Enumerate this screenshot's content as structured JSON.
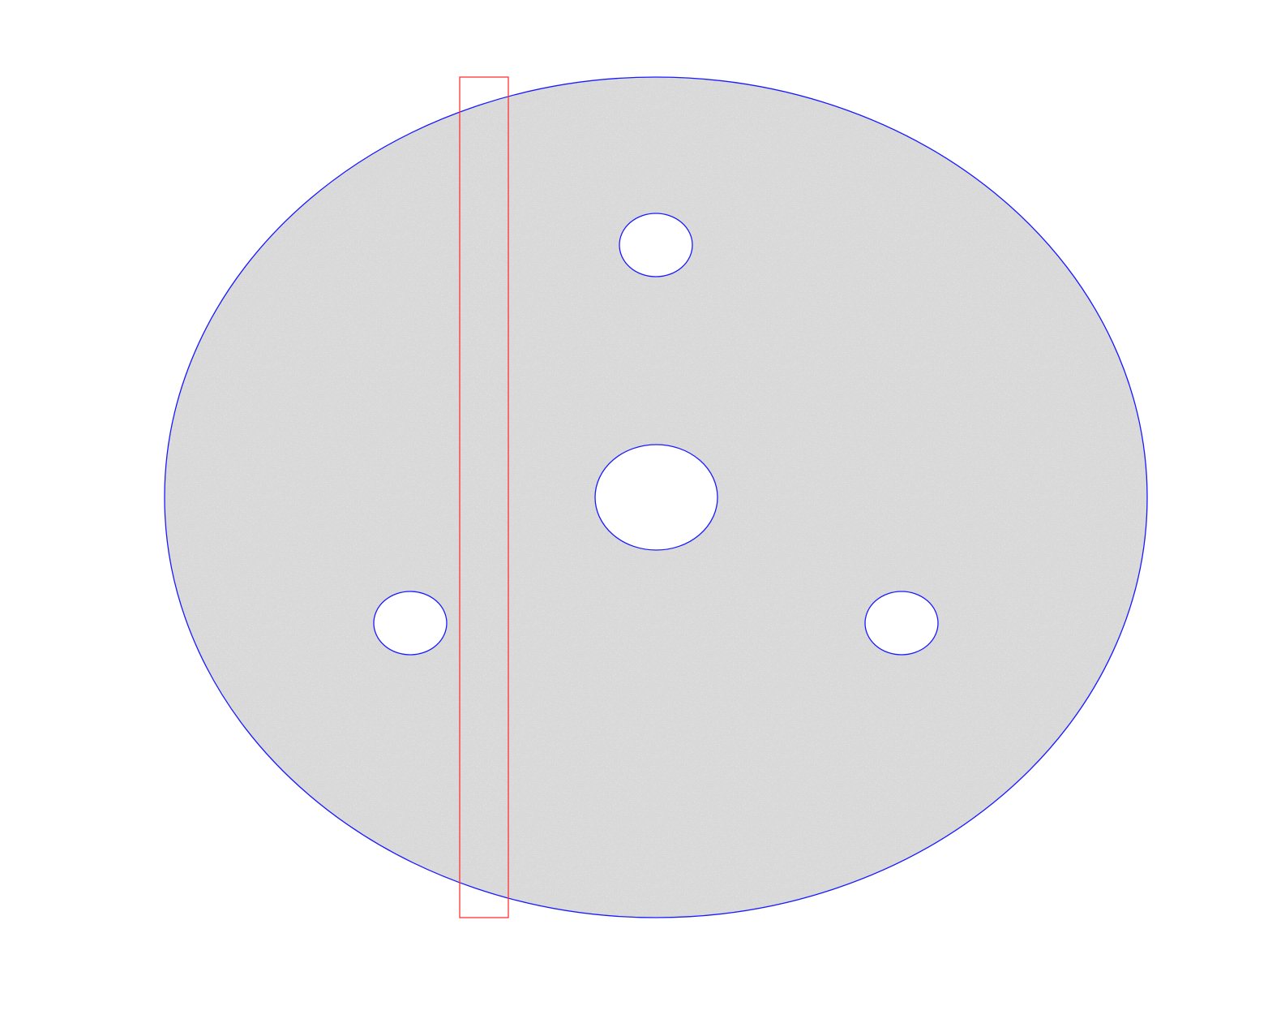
{
  "figure": {
    "shape": "perforated circular disk",
    "hole_count": 4,
    "colors": {
      "background": "#ffffff",
      "mesh_fill": "#d8d8d8",
      "mesh_speckle": "#f2f2f2",
      "boundary": "#1a1aff",
      "selection_box": "#ff3333"
    }
  },
  "legend": {}
}
